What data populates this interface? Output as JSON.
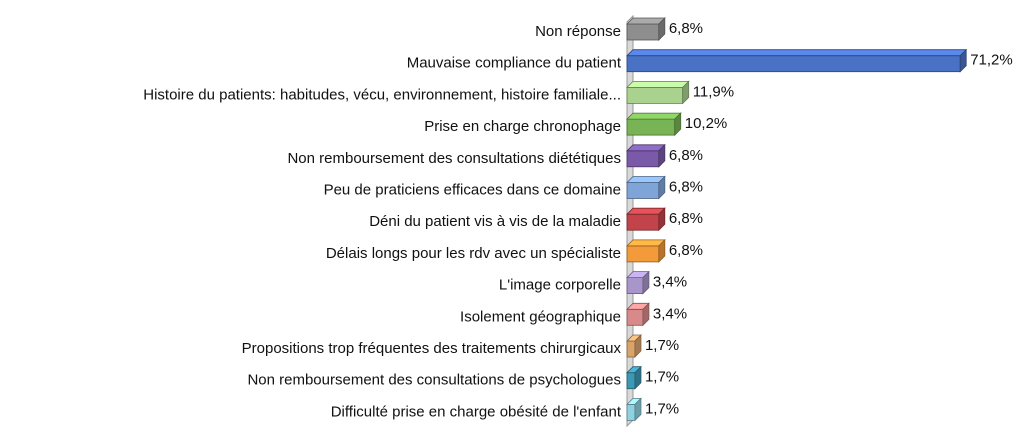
{
  "chart_data": {
    "type": "bar",
    "orientation": "horizontal",
    "categories": [
      "Non réponse",
      "Mauvaise compliance du patient",
      "Histoire du patients:  habitudes, vécu, environnement, histoire familiale...",
      "Prise en charge chronophage",
      "Non remboursement des consultations diététiques",
      "Peu de praticiens efficaces dans ce domaine",
      "Déni du patient vis à vis de la maladie",
      "Délais longs pour les rdv avec un spécialiste",
      "L'image corporelle",
      "Isolement géographique",
      "Propositions trop fréquentes des traitements chirurgicaux",
      "Non remboursement des consultations de psychologues",
      "Difficulté prise en charge obésité de l'enfant"
    ],
    "values": [
      6.8,
      71.2,
      11.9,
      10.2,
      6.8,
      6.8,
      6.8,
      6.8,
      3.4,
      3.4,
      1.7,
      1.7,
      1.7
    ],
    "value_labels": [
      "6,8%",
      "71,2%",
      "11,9%",
      "10,2%",
      "6,8%",
      "6,8%",
      "6,8%",
      "6,8%",
      "3,4%",
      "3,4%",
      "1,7%",
      "1,7%",
      "1,7%"
    ],
    "colors": [
      "#8e8e8e",
      "#4a72c4",
      "#a8d28e",
      "#78b455",
      "#7a5aa8",
      "#7fa5d8",
      "#c2444a",
      "#f39a3a",
      "#a896cb",
      "#d88a8a",
      "#d9a36c",
      "#3d98b4",
      "#8fd1e1"
    ]
  }
}
